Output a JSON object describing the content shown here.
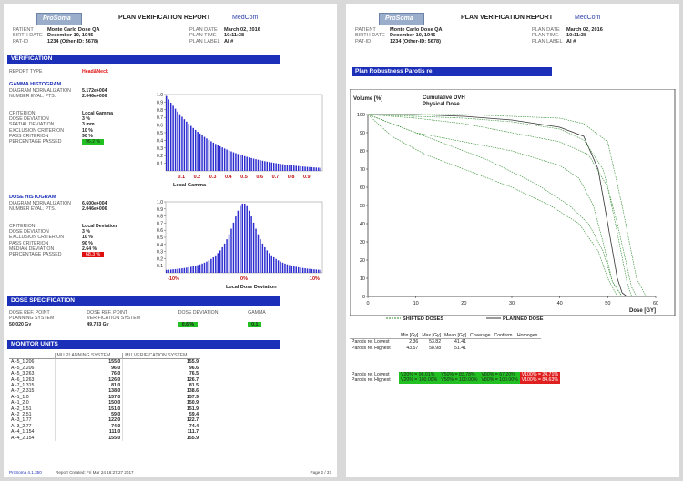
{
  "header": {
    "logo_text": "ProSoma",
    "title": "PLAN VERIFICATION REPORT",
    "brand": "MedCom",
    "patient_label": "PATIENT",
    "patient": "Monte Carlo Dose QA",
    "birth_label": "BIRTH DATE",
    "birth": "December 10, 1945",
    "patid_label": "PAT-ID",
    "patid": "1234 (Other-ID: 5678)",
    "plandate_label": "PLAN DATE",
    "plandate": "March 02, 2016",
    "plantime_label": "PLAN TIME",
    "plantime": "10:11:38",
    "planlabel_label": "PLAN LABEL",
    "planlabel": "AI #"
  },
  "verification": {
    "title": "VERIFICATION",
    "report_type_label": "REPORT TYPE",
    "report_type": "Head&Neck",
    "gamma": {
      "title": "GAMMA HISTOGRAM",
      "rows": [
        {
          "k": "DIAGRAM NORMALIZATION",
          "v": "5.172e+004"
        },
        {
          "k": "NUMBER EVAL. PTS.",
          "v": "2.046e+006"
        }
      ],
      "rows2": [
        {
          "k": "CRITERION",
          "v": "Local Gamma"
        },
        {
          "k": "DOSE DEVIATION",
          "v": "3 %"
        },
        {
          "k": "SPATIAL DEVIATION",
          "v": "3 mm"
        },
        {
          "k": "EXCLUSION CRITERION",
          "v": "10 %"
        },
        {
          "k": "PASS CRITERION",
          "v": "90 %"
        }
      ],
      "passed_label": "PERCENTAGE PASSED",
      "passed": "96.2 %"
    },
    "dose": {
      "title": "DOSE HISTOGRAM",
      "rows": [
        {
          "k": "DIAGRAM NORMALIZATION",
          "v": "6.600e+004"
        },
        {
          "k": "NUMBER EVAL. PTS.",
          "v": "2.046e+006"
        }
      ],
      "rows2": [
        {
          "k": "CRITERION",
          "v": "Local Deviation"
        },
        {
          "k": "DOSE DEVIATION",
          "v": "3 %"
        },
        {
          "k": "EXCLUSION CRITERION",
          "v": "10 %"
        },
        {
          "k": "PASS CRITERION",
          "v": "90 %"
        },
        {
          "k": "MEDIAN DEVIATION",
          "v": "2.64 %"
        }
      ],
      "passed_label": "PERCENTAGE PASSED",
      "passed": "68.3 %"
    }
  },
  "dose_spec": {
    "title": "DOSE SPECIFICATION",
    "cols": [
      "DOSE REF. POINT",
      "DOSE REF. POINT",
      "DOSE DEVIATION",
      "GAMMA"
    ],
    "cols2": [
      "PLANNING SYSTEM",
      "VERIFICATION SYSTEM",
      "",
      ""
    ],
    "vals": [
      "50.020 Gy",
      "49.733 Gy",
      "0.6 %",
      "0.1"
    ]
  },
  "monitor_units": {
    "title": "MONITOR UNITS",
    "headers": [
      "MU PLANNING SYSTEM",
      "MU VERIFICATION SYSTEM"
    ],
    "rows": [
      [
        "AI-5_1.206",
        "155.0",
        "155.9"
      ],
      [
        "AI-5_2.206",
        "96.0",
        "96.6"
      ],
      [
        "AI-5_3.263",
        "76.0",
        "76.5"
      ],
      [
        "AI-6_1.263",
        "126.0",
        "126.7"
      ],
      [
        "AI-7_1.315",
        "81.0",
        "81.5"
      ],
      [
        "AI-7_2.315",
        "138.0",
        "138.6"
      ],
      [
        "AI-1_1.0",
        "157.0",
        "157.9"
      ],
      [
        "AI-1_2.0",
        "150.0",
        "150.9"
      ],
      [
        "AI-2_1.51",
        "151.0",
        "151.9"
      ],
      [
        "AI-2_2.51",
        "59.0",
        "59.4"
      ],
      [
        "AI-3_1.77",
        "122.0",
        "122.7"
      ],
      [
        "AI-3_2.77",
        "74.0",
        "74.4"
      ],
      [
        "AI-4_1.154",
        "111.0",
        "111.7"
      ],
      [
        "AI-4_2.154",
        "155.0",
        "155.9"
      ]
    ]
  },
  "footer": {
    "version": "ProSoma 4.1.350",
    "created": "Report Created: Fri Mar 24 16:27:27 2017",
    "page": "Page 2 / 37"
  },
  "right": {
    "section_title": "Plan Robustness Parotis re.",
    "chart_title1": "Cumulative DVH",
    "chart_title2": "Physical Dose",
    "legend_shifted": "SHIFTED DOSES",
    "legend_planned": "PLANNED DOSE",
    "stats_headers": [
      "Min [Gy]",
      "Max [Gy]",
      "Mean [Gy]",
      "Coverage",
      "Conform.",
      "Homogen."
    ],
    "stats_rows": [
      [
        "Parotis re. Lowest",
        "2.36",
        "53.82",
        "41.41",
        "",
        "",
        ""
      ],
      [
        "Parotis re. Highest",
        "43.57",
        "58.98",
        "51.41",
        "",
        "",
        ""
      ]
    ],
    "vx_rows": [
      {
        "name": "Parotis re. Lowest",
        "cells": [
          "V20% = 96.01%",
          "V50% = 83.78%",
          "V80% = 67.20%",
          "V100% = 24.71%"
        ]
      },
      {
        "name": "Parotis re. Highest",
        "cells": [
          "V20% = 100.00%",
          "V50% = 100.00%",
          "V80% = 100.00%",
          "V100% = 84.63%"
        ]
      }
    ]
  },
  "chart_data": [
    {
      "type": "bar",
      "title": "",
      "xlabel": "Local Gamma",
      "ylabel": "",
      "xticks": [
        0.1,
        0.2,
        0.3,
        0.4,
        0.5,
        0.6,
        0.7,
        0.8,
        0.9
      ],
      "yticks": [
        0.1,
        0.2,
        0.3,
        0.4,
        0.5,
        0.6,
        0.7,
        0.8,
        0.9,
        1.0
      ],
      "ylim": [
        0,
        1.0
      ],
      "shape": "decaying",
      "color": "#2b2bd0"
    },
    {
      "type": "bar",
      "title": "",
      "xlabel": "Local Dose Deviation",
      "ylabel": "",
      "xticks": [
        "-10%",
        "0%",
        "10%"
      ],
      "yticks": [
        0.1,
        0.2,
        0.3,
        0.4,
        0.5,
        0.6,
        0.7,
        0.8,
        0.9,
        1.0
      ],
      "ylim": [
        0,
        1.0
      ],
      "shape": "peaked",
      "color": "#2b2bd0"
    },
    {
      "type": "line",
      "title": "Cumulative DVH",
      "subtitle": "Physical Dose",
      "xlabel": "Dose [GY]",
      "ylabel": "Volume [%]",
      "xlim": [
        0,
        60
      ],
      "ylim": [
        0,
        100
      ],
      "xticks": [
        0,
        10,
        20,
        30,
        40,
        50,
        60
      ],
      "yticks": [
        0,
        10,
        20,
        30,
        40,
        50,
        60,
        70,
        80,
        90,
        100
      ],
      "series": [
        {
          "name": "PLANNED DOSE",
          "color": "#333333",
          "dash": false,
          "x": [
            0,
            10,
            20,
            30,
            40,
            45,
            48,
            50,
            52,
            53,
            54
          ],
          "y": [
            100,
            100,
            99,
            97,
            93,
            88,
            70,
            40,
            10,
            2,
            0
          ]
        },
        {
          "name": "SHIFTED DOSES",
          "color": "#2a8a2a",
          "dash": true,
          "x": [
            0,
            5,
            10,
            20,
            30,
            40,
            44,
            47,
            49,
            51,
            53
          ],
          "y": [
            100,
            95,
            90,
            85,
            80,
            72,
            65,
            50,
            30,
            8,
            0
          ]
        },
        {
          "name": "SHIFTED DOSES",
          "color": "#2a8a2a",
          "dash": true,
          "x": [
            0,
            10,
            20,
            30,
            40,
            45,
            49,
            52,
            55,
            56
          ],
          "y": [
            100,
            99,
            98,
            96,
            92,
            86,
            70,
            40,
            5,
            0
          ]
        },
        {
          "name": "SHIFTED DOSES",
          "color": "#2a8a2a",
          "dash": true,
          "x": [
            0,
            8,
            15,
            25,
            35,
            42,
            46,
            49,
            51,
            53
          ],
          "y": [
            100,
            92,
            85,
            75,
            62,
            50,
            40,
            25,
            8,
            0
          ]
        },
        {
          "name": "SHIFTED DOSES",
          "color": "#2a8a2a",
          "dash": true,
          "x": [
            0,
            5,
            12,
            20,
            30,
            38,
            44,
            48,
            50,
            52
          ],
          "y": [
            100,
            88,
            78,
            70,
            60,
            50,
            40,
            25,
            10,
            0
          ]
        },
        {
          "name": "SHIFTED DOSES",
          "color": "#2a8a2a",
          "dash": true,
          "x": [
            0,
            10,
            20,
            30,
            40,
            45,
            50,
            53,
            56,
            58
          ],
          "y": [
            100,
            100,
            100,
            99,
            98,
            95,
            85,
            50,
            10,
            0
          ]
        },
        {
          "name": "SHIFTED DOSES",
          "color": "#2a8a2a",
          "dash": true,
          "x": [
            0,
            10,
            20,
            30,
            40,
            46,
            50,
            52,
            54,
            55
          ],
          "y": [
            100,
            98,
            95,
            90,
            85,
            78,
            60,
            35,
            8,
            0
          ]
        }
      ]
    }
  ]
}
